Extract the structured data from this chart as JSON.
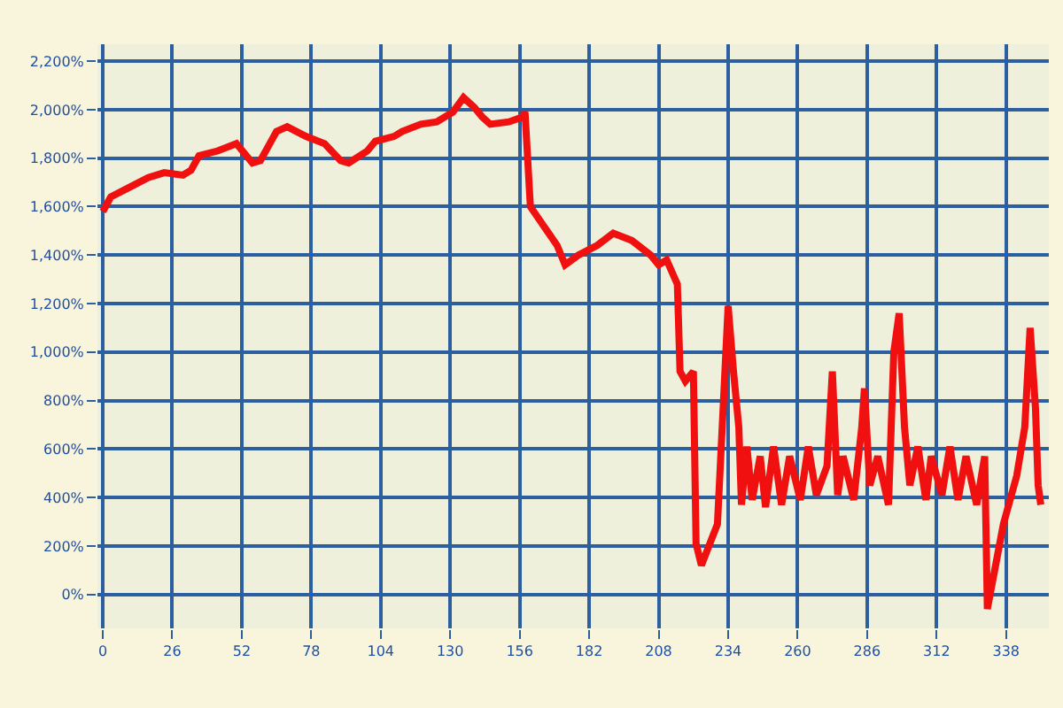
{
  "chart_data": {
    "type": "line",
    "grid": true,
    "line_style": "solid",
    "marker": "none",
    "xlim": [
      -2,
      354
    ],
    "xticks": [
      0,
      26,
      52,
      78,
      104,
      130,
      156,
      182,
      208,
      234,
      260,
      286,
      312,
      338
    ],
    "ylim": [
      -140,
      2270
    ],
    "yticks": [
      {
        "value": 0,
        "label": "0%"
      },
      {
        "value": 200,
        "label": "200%"
      },
      {
        "value": 400,
        "label": "400%"
      },
      {
        "value": 600,
        "label": "600%"
      },
      {
        "value": 800,
        "label": "800%"
      },
      {
        "value": 1000,
        "label": "1,000%"
      },
      {
        "value": 1200,
        "label": "1,200%"
      },
      {
        "value": 1400,
        "label": "1,400%"
      },
      {
        "value": 1600,
        "label": "1,600%"
      },
      {
        "value": 1800,
        "label": "1,800%"
      },
      {
        "value": 2000,
        "label": "2,000%"
      },
      {
        "value": 2200,
        "label": "2,200%"
      }
    ],
    "x": [
      0,
      3,
      10,
      17,
      23,
      30,
      33,
      36,
      43,
      50,
      56,
      59,
      65,
      69,
      76,
      83,
      89,
      92,
      99,
      102,
      109,
      112,
      119,
      125,
      131,
      135,
      139,
      142,
      145,
      152,
      157,
      158,
      160,
      165,
      170,
      173,
      178,
      185,
      191,
      198,
      205,
      208,
      211,
      215,
      216,
      218,
      221,
      222,
      224,
      230,
      234,
      236,
      238,
      239,
      241,
      243,
      246,
      248,
      251,
      254,
      257,
      261,
      264,
      267,
      271,
      273,
      275,
      277,
      281,
      284,
      285,
      287,
      290,
      294,
      296,
      298,
      300,
      302,
      305,
      308,
      310,
      314,
      317,
      320,
      323,
      327,
      330,
      331,
      337,
      342,
      345,
      347,
      349,
      350,
      351
    ],
    "series": [
      {
        "color": "#f01010",
        "values": [
          1580,
          1640,
          1680,
          1720,
          1740,
          1730,
          1750,
          1810,
          1830,
          1860,
          1780,
          1790,
          1910,
          1930,
          1890,
          1860,
          1790,
          1780,
          1830,
          1870,
          1890,
          1910,
          1940,
          1950,
          1990,
          2050,
          2010,
          1970,
          1940,
          1950,
          1970,
          1990,
          1600,
          1520,
          1440,
          1360,
          1400,
          1440,
          1490,
          1460,
          1400,
          1360,
          1380,
          1280,
          920,
          880,
          920,
          210,
          120,
          290,
          1190,
          920,
          690,
          370,
          610,
          390,
          570,
          360,
          610,
          370,
          570,
          390,
          610,
          410,
          530,
          920,
          410,
          570,
          390,
          690,
          850,
          450,
          570,
          370,
          1000,
          1160,
          690,
          450,
          610,
          390,
          570,
          410,
          610,
          390,
          570,
          370,
          570,
          -60,
          290,
          490,
          690,
          1100,
          770,
          450,
          370
        ]
      }
    ]
  }
}
